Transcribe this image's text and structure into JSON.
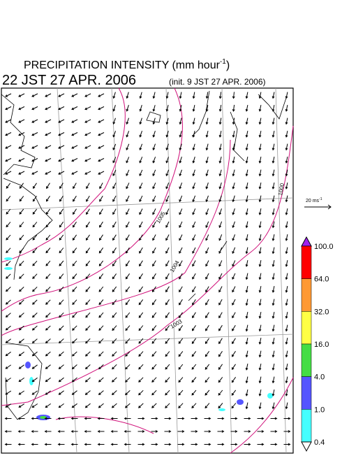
{
  "title": {
    "main": "PRECIPITATION INTENSITY (mm hour",
    "superscript": "-1",
    "close": ")"
  },
  "valid_time": "22 JST 27 APR. 2006",
  "init_time": "(init. 9 JST 27 APR. 2006)",
  "vector_scale": {
    "label": "20 ms",
    "superscript": "-1"
  },
  "isobars": [
    "1005",
    "1004",
    "1003",
    "1000"
  ],
  "colorbar": {
    "labels": [
      "100.0",
      "64.0",
      "32.0",
      "16.0",
      "4.0",
      "1.0",
      "0.4"
    ],
    "colors": [
      "#a020f0",
      "#ff0000",
      "#ff9933",
      "#ffff44",
      "#44dd44",
      "#5555ff",
      "#44ffff",
      "#ffffff"
    ]
  }
}
